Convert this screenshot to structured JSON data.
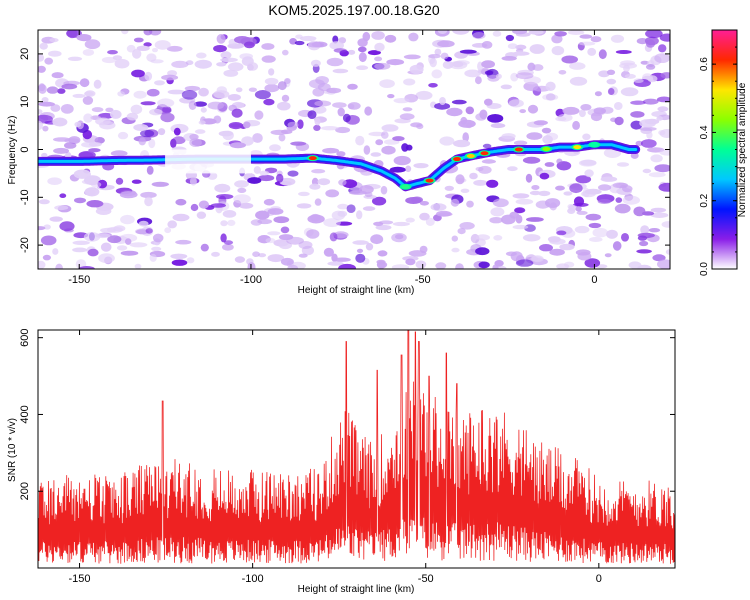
{
  "title": "KOM5.2025.197.00.18.G20",
  "chart_data": [
    {
      "type": "heatmap",
      "xlabel": "Height of straight line (km)",
      "ylabel": "Frequency (Hz)",
      "xlim": [
        -162,
        22
      ],
      "ylim": [
        -25,
        25
      ],
      "xticks": [
        -150,
        -100,
        -50,
        0
      ],
      "yticks": [
        -20,
        -10,
        0,
        10,
        20
      ],
      "colorbar": {
        "label": "Normalized spectral amplitude",
        "range": [
          0.0,
          0.7
        ],
        "ticks": [
          0.0,
          0.2,
          0.4,
          0.6
        ],
        "colors": [
          "#ffffff",
          "#8a1ee8",
          "#0014ff",
          "#00c8ff",
          "#00ff96",
          "#8cff00",
          "#ffe600",
          "#ff2800",
          "#ff1e96"
        ]
      },
      "ridge": {
        "x": [
          -162,
          -150,
          -140,
          -128,
          -115,
          -100,
          -90,
          -82,
          -75,
          -68,
          -62,
          -58,
          -55,
          -52,
          -48,
          -44,
          -40,
          -35,
          -30,
          -25,
          -20,
          -15,
          -10,
          -5,
          0,
          5,
          10
        ],
        "y": [
          -2.5,
          -2.5,
          -2.3,
          -2.2,
          -2.0,
          -2.0,
          -2.0,
          -1.8,
          -2.3,
          -3.0,
          -4.5,
          -6.0,
          -7.8,
          -7.2,
          -6.5,
          -4.0,
          -2.0,
          -1.2,
          -0.5,
          0.0,
          0.0,
          0.0,
          0.5,
          0.5,
          1.0,
          1.0,
          0.0
        ]
      }
    },
    {
      "type": "line",
      "xlabel": "Height of straight line (km)",
      "ylabel": "SNR (10 * v/v)",
      "xlim": [
        -162,
        22
      ],
      "ylim": [
        0,
        620
      ],
      "xticks": [
        -150,
        -100,
        -50,
        0
      ],
      "yticks": [
        200,
        400,
        600
      ],
      "color": "#ee2222",
      "envelope": {
        "x": [
          -162,
          -150,
          -140,
          -130,
          -120,
          -110,
          -100,
          -95,
          -90,
          -85,
          -80,
          -76,
          -73,
          -70,
          -65,
          -60,
          -55,
          -53,
          -50,
          -45,
          -40,
          -35,
          -30,
          -25,
          -20,
          -15,
          -10,
          -5,
          0,
          5,
          10,
          15,
          22
        ],
        "y": [
          130,
          135,
          130,
          150,
          155,
          140,
          140,
          140,
          140,
          140,
          145,
          205,
          230,
          200,
          175,
          210,
          260,
          275,
          255,
          235,
          215,
          235,
          230,
          220,
          195,
          175,
          165,
          150,
          130,
          125,
          125,
          125,
          120
        ]
      },
      "peaks": {
        "x": [
          -126,
          -73,
          -64,
          -57,
          -55,
          -53,
          -52,
          -49,
          -44,
          -41
        ],
        "y": [
          435,
          590,
          515,
          555,
          620,
          615,
          590,
          500,
          560,
          480
        ]
      }
    }
  ]
}
